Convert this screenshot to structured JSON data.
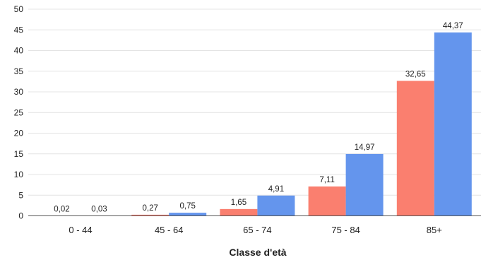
{
  "chart_data": {
    "type": "bar",
    "categories": [
      "0 - 44",
      "45 - 64",
      "65 - 74",
      "75 - 84",
      "85+"
    ],
    "series": [
      {
        "color": "#fa7f6f",
        "values": [
          0.02,
          0.27,
          1.65,
          7.11,
          32.65
        ],
        "labels": [
          "0,02",
          "0,27",
          "1,65",
          "7,11",
          "32,65"
        ]
      },
      {
        "color": "#6495ed",
        "values": [
          0.03,
          0.75,
          4.91,
          14.97,
          44.37
        ],
        "labels": [
          "0,03",
          "0,75",
          "4,91",
          "14,97",
          "44,37"
        ]
      }
    ],
    "y_ticks": [
      0,
      5,
      10,
      15,
      20,
      25,
      30,
      35,
      40,
      45,
      50
    ],
    "ylim": [
      0,
      50
    ],
    "xlabel": "Classe d'età",
    "ylabel": "",
    "grid": true,
    "legend": "none"
  }
}
